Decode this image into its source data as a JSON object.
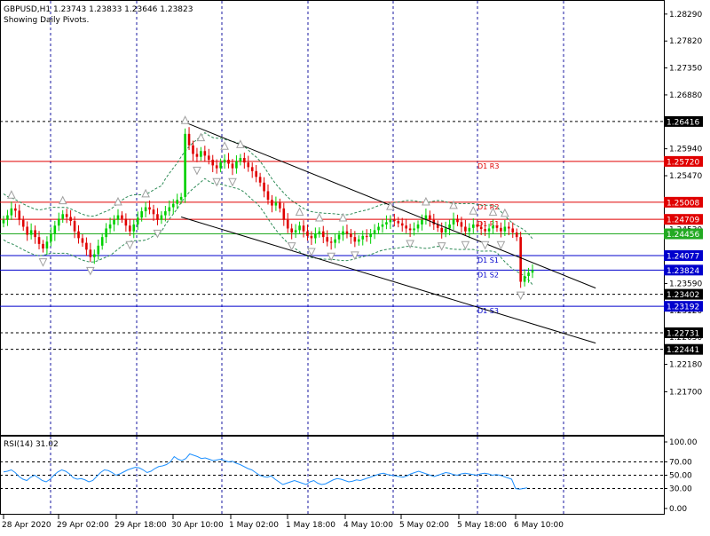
{
  "header": {
    "symbol_line": "GBPUSD,H1  1.23743 1.23833 1.23646 1.23823",
    "subtitle": "Showing Daily Pivots."
  },
  "colors": {
    "background": "#ffffff",
    "grid": "#1a1aa0",
    "bull_candle": "#00d000",
    "bear_candle": "#e00000",
    "channel": "#000000",
    "bands": "#2e8b57",
    "fractal": "#a0a0a0",
    "rsi_line": "#1e90ff",
    "resistance": "#e00000",
    "support": "#0000cc",
    "current_price_line": "#22aa22"
  },
  "chart_data": [
    {
      "type": "candlestick",
      "title": "GBPUSD,H1",
      "subtitle": "Showing Daily Pivots.",
      "ylim": [
        1.2095,
        1.2852
      ],
      "y_ticks": [
        "1.28290",
        "1.27820",
        "1.27350",
        "1.26880",
        "1.26416",
        "1.25940",
        "1.25470",
        "1.25000",
        "1.24530",
        "1.24060",
        "1.23590",
        "1.23120",
        "1.22650",
        "1.22180",
        "1.21700"
      ],
      "x_ticks": [
        "28 Apr 2020",
        "29 Apr 02:00",
        "29 Apr 18:00",
        "30 Apr 10:00",
        "1 May 02:00",
        "1 May 18:00",
        "4 May 10:00",
        "5 May 02:00",
        "5 May 18:00",
        "6 May 10:00"
      ],
      "grid": true,
      "close_series": [
        1.247,
        1.2478,
        1.249,
        1.2486,
        1.247,
        1.2458,
        1.2444,
        1.2452,
        1.244,
        1.2428,
        1.242,
        1.2432,
        1.2445,
        1.246,
        1.2472,
        1.248,
        1.2475,
        1.2468,
        1.245,
        1.2438,
        1.243,
        1.2418,
        1.2405,
        1.241,
        1.2425,
        1.244,
        1.2455,
        1.2462,
        1.247,
        1.2478,
        1.2472,
        1.246,
        1.245,
        1.2462,
        1.2474,
        1.2485,
        1.2492,
        1.2488,
        1.248,
        1.247,
        1.2478,
        1.2485,
        1.2492,
        1.2498,
        1.2505,
        1.251,
        1.262,
        1.26,
        1.2585,
        1.258,
        1.259,
        1.2582,
        1.2575,
        1.2565,
        1.256,
        1.257,
        1.2575,
        1.2568,
        1.256,
        1.2572,
        1.2578,
        1.257,
        1.2562,
        1.2555,
        1.2545,
        1.2535,
        1.252,
        1.2505,
        1.2495,
        1.25,
        1.249,
        1.247,
        1.2455,
        1.2448,
        1.2452,
        1.246,
        1.245,
        1.2442,
        1.2438,
        1.2446,
        1.245,
        1.244,
        1.2432,
        1.243,
        1.2436,
        1.2444,
        1.245,
        1.2446,
        1.244,
        1.2432,
        1.2436,
        1.2442,
        1.244,
        1.2446,
        1.2452,
        1.2458,
        1.2462,
        1.2466,
        1.247,
        1.2468,
        1.2464,
        1.246,
        1.2455,
        1.2452,
        1.2455,
        1.2462,
        1.247,
        1.2478,
        1.247,
        1.2462,
        1.2456,
        1.2448,
        1.2455,
        1.2462,
        1.2472,
        1.2466,
        1.2458,
        1.245,
        1.2456,
        1.2462,
        1.2458,
        1.2454,
        1.245,
        1.2455,
        1.246,
        1.2456,
        1.245,
        1.2458,
        1.2455,
        1.2448,
        1.244,
        1.2362,
        1.2372,
        1.2378,
        1.2382
      ],
      "pivot_levels": [
        {
          "label": "D1 R3",
          "price_label": "1.25720",
          "value": 1.2572,
          "kind": "resistance"
        },
        {
          "label": "D1 R2",
          "price_label": "1.25008",
          "value": 1.25008,
          "kind": "resistance"
        },
        {
          "label": "D1 R1",
          "price_label": "1.24709",
          "value": 1.24709,
          "kind": "resistance"
        },
        {
          "label": "",
          "price_label": "1.24456",
          "value": 1.24456,
          "kind": "current"
        },
        {
          "label": "D1 S1",
          "price_label": "1.24077",
          "value": 1.24077,
          "kind": "support"
        },
        {
          "label": "D1 S2",
          "price_label": "1.23824",
          "value": 1.23824,
          "kind": "support"
        },
        {
          "label": "D1 S3",
          "price_label": "1.23192",
          "value": 1.23192,
          "kind": "support"
        }
      ],
      "dashed_levels": [
        {
          "price_label": "1.26416",
          "value": 1.26416
        },
        {
          "price_label": "1.23402",
          "value": 1.23402
        },
        {
          "price_label": "1.22731",
          "value": 1.22731
        },
        {
          "price_label": "1.22441",
          "value": 1.22441
        }
      ],
      "channel": {
        "upper": {
          "x1_index": 46,
          "y1": 1.264,
          "x2_index": 150,
          "y2": 1.2351
        },
        "lower": {
          "x1_index": 45,
          "y1": 1.2475,
          "x2_index": 150,
          "y2": 1.2255
        }
      }
    },
    {
      "type": "line",
      "title": "RSI(14) 31.02",
      "ylim": [
        -8,
        108
      ],
      "y_ticks": [
        "100.00",
        "70.00",
        "50.00",
        "30.00",
        "0.00"
      ],
      "levels": [
        70,
        50,
        30
      ],
      "values": [
        55,
        56,
        58,
        54,
        48,
        44,
        42,
        47,
        50,
        46,
        42,
        40,
        44,
        50,
        55,
        58,
        56,
        52,
        46,
        44,
        45,
        43,
        40,
        42,
        48,
        54,
        58,
        57,
        54,
        50,
        52,
        55,
        58,
        60,
        62,
        61,
        58,
        54,
        56,
        60,
        63,
        64,
        66,
        70,
        78,
        74,
        72,
        75,
        82,
        80,
        78,
        75,
        76,
        74,
        72,
        73,
        74,
        72,
        70,
        71,
        68,
        66,
        63,
        60,
        58,
        54,
        50,
        48,
        47,
        49,
        44,
        40,
        36,
        38,
        40,
        42,
        40,
        38,
        36,
        40,
        42,
        38,
        36,
        37,
        40,
        43,
        45,
        44,
        42,
        40,
        41,
        43,
        42,
        44,
        46,
        48,
        50,
        52,
        53,
        51,
        50,
        49,
        48,
        47,
        49,
        52,
        54,
        56,
        54,
        52,
        50,
        48,
        50,
        52,
        54,
        53,
        51,
        50,
        52,
        53,
        52,
        51,
        50,
        52,
        53,
        52,
        50,
        51,
        50,
        48,
        46,
        44,
        30,
        29,
        30,
        31
      ]
    }
  ],
  "rsi_panel": {
    "label": "RSI(14) 31.02"
  }
}
